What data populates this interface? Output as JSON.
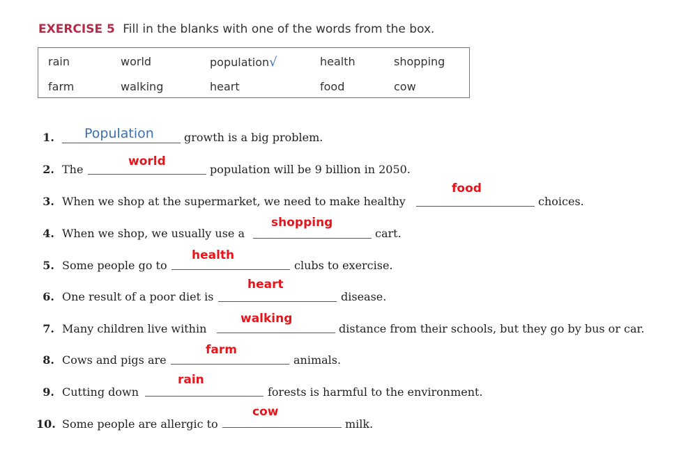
{
  "exercise": {
    "label": "EXERCISE 5",
    "instructions": "Fill in the blanks with one of the words from the box."
  },
  "word_box": {
    "words": [
      "rain",
      "world",
      "population",
      "health",
      "shopping",
      "farm",
      "walking",
      "heart",
      "food",
      "cow"
    ],
    "check_mark": "√"
  },
  "items": [
    {
      "num": "1.",
      "before": "",
      "after": "growth is a big problem.",
      "answer": "Population",
      "answer_style": "handwritten"
    },
    {
      "num": "2.",
      "before": "The",
      "after": "population will be 9 billion in 2050.",
      "answer": "world",
      "answer_style": "red"
    },
    {
      "num": "3.",
      "before": "When we shop at the supermarket, we need to make healthy",
      "after": "choices.",
      "answer": "food",
      "answer_style": "red"
    },
    {
      "num": "4.",
      "before": "When we shop, we usually use a",
      "after": "cart.",
      "answer": "shopping",
      "answer_style": "red"
    },
    {
      "num": "5.",
      "before": "Some people go to",
      "after": "clubs to exercise.",
      "answer": "health",
      "answer_style": "red"
    },
    {
      "num": "6.",
      "before": "One result of a poor diet is",
      "after": "disease.",
      "answer": "heart",
      "answer_style": "red"
    },
    {
      "num": "7.",
      "before": "Many children live within",
      "after": "distance from their schools, but they go by bus or car.",
      "answer": "walking",
      "answer_style": "red"
    },
    {
      "num": "8.",
      "before": "Cows and pigs are",
      "after": "animals.",
      "answer": "farm",
      "answer_style": "red"
    },
    {
      "num": "9.",
      "before": "Cutting down",
      "after": "forests is harmful to the environment.",
      "answer": "rain",
      "answer_style": "red"
    },
    {
      "num": "10.",
      "before": "Some people are allergic to",
      "after": "milk.",
      "answer": "cow",
      "answer_style": "red"
    }
  ],
  "colors": {
    "exercise_label": "#b52b47",
    "answer_red": "#e8141b",
    "handwriting_blue": "#3a6fb5"
  }
}
